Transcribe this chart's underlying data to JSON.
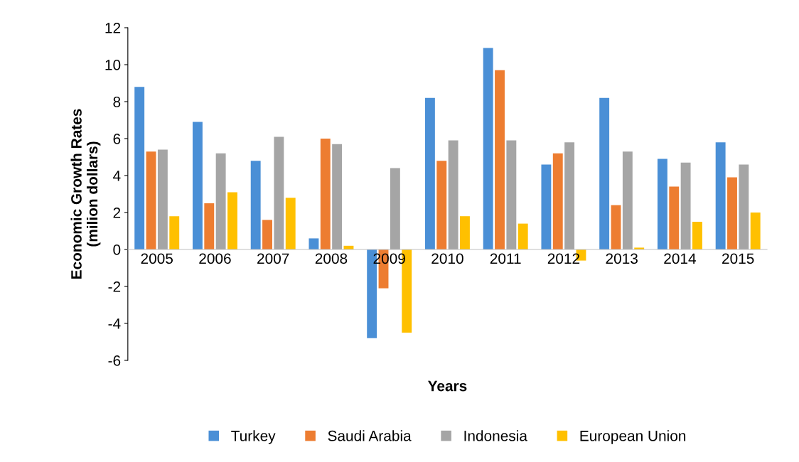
{
  "chart_data": {
    "type": "bar",
    "xlabel": "Years",
    "ylabel": "Economic Growth Rates\n(milion dollars)",
    "categories": [
      "2005",
      "2006",
      "2007",
      "2008",
      "2009",
      "2010",
      "2011",
      "2012",
      "2013",
      "2014",
      "2015"
    ],
    "series": [
      {
        "name": "Turkey",
        "color": "#4a8fd6",
        "values": [
          8.8,
          6.9,
          4.8,
          0.6,
          -4.8,
          8.2,
          10.9,
          4.6,
          8.2,
          4.9,
          5.8
        ]
      },
      {
        "name": "Saudi Arabia",
        "color": "#ed7d31",
        "values": [
          5.3,
          2.5,
          1.6,
          6.0,
          -2.1,
          4.8,
          9.7,
          5.2,
          2.4,
          3.4,
          3.9
        ]
      },
      {
        "name": "Indonesia",
        "color": "#a5a5a5",
        "values": [
          5.4,
          5.2,
          6.1,
          5.7,
          4.4,
          5.9,
          5.9,
          5.8,
          5.3,
          4.7,
          4.6
        ]
      },
      {
        "name": "European Union",
        "color": "#ffc000",
        "values": [
          1.8,
          3.1,
          2.8,
          0.2,
          -4.5,
          1.8,
          1.4,
          -0.6,
          0.1,
          1.5,
          2.0
        ]
      }
    ],
    "ylim": [
      -6,
      12
    ],
    "yticks": [
      -6,
      -4,
      -2,
      0,
      2,
      4,
      6,
      8,
      10,
      12
    ],
    "grid": false,
    "legend": "bottom"
  }
}
